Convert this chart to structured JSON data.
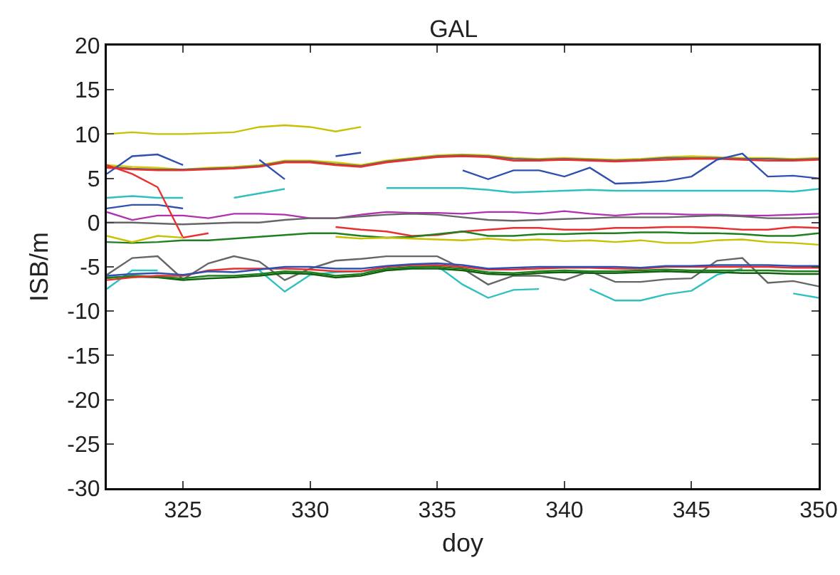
{
  "chart_data": {
    "type": "line",
    "title": "GAL",
    "xlabel": "doy",
    "ylabel": "ISB/m",
    "x": [
      322,
      323,
      324,
      325,
      326,
      327,
      328,
      329,
      330,
      331,
      332,
      333,
      334,
      335,
      336,
      337,
      338,
      339,
      340,
      341,
      342,
      343,
      344,
      345,
      346,
      347,
      348,
      349,
      350
    ],
    "xlim": [
      322,
      350
    ],
    "xticks": [
      325,
      330,
      335,
      340,
      345,
      350
    ],
    "ylim": [
      -30,
      20
    ],
    "yticks": [
      -30,
      -25,
      -20,
      -15,
      -10,
      -5,
      0,
      5,
      10,
      15,
      20
    ],
    "grid": false,
    "marker": "none",
    "line_style": "solid",
    "series": [
      {
        "color": "#c8c000",
        "values": [
          10,
          10.2,
          10,
          10,
          10.1,
          10.2,
          10.8,
          11,
          10.8,
          10.3,
          10.8,
          null,
          null,
          null,
          null,
          null,
          null,
          null,
          null,
          null,
          null,
          null,
          null,
          null,
          null,
          null,
          null,
          null,
          null
        ]
      },
      {
        "color": "#d4c800",
        "values": [
          6.5,
          6.3,
          6.2,
          6,
          6.2,
          6.3,
          6.5,
          7,
          7,
          6.8,
          6.5,
          7,
          7.3,
          7.6,
          7.7,
          7.6,
          7.3,
          7.2,
          7.3,
          7.2,
          7.1,
          7.2,
          7.4,
          7.5,
          7.4,
          7.3,
          7.3,
          7.2,
          7.3
        ]
      },
      {
        "color": "#666666",
        "values": [
          6.3,
          6.1,
          6,
          6,
          6.1,
          6.2,
          6.4,
          6.9,
          6.9,
          6.6,
          6.4,
          6.9,
          7.2,
          7.5,
          7.6,
          7.5,
          7.2,
          7.1,
          7.2,
          7.1,
          7,
          7.1,
          7.3,
          7.3,
          7.3,
          7.2,
          7.2,
          7.1,
          7.2
        ]
      },
      {
        "color": "#e83030",
        "values": [
          6.2,
          6,
          5.9,
          5.9,
          6,
          6.1,
          6.3,
          6.8,
          6.8,
          6.5,
          6.3,
          6.8,
          7.1,
          7.4,
          7.5,
          7.4,
          7,
          7,
          7.1,
          7,
          6.9,
          7,
          7.1,
          7.2,
          7.2,
          7.1,
          7,
          7,
          7.1
        ]
      },
      {
        "color": "#3050b0",
        "values": [
          5.5,
          7.5,
          7.7,
          6.5,
          null,
          null,
          7.1,
          4.9,
          null,
          7.5,
          7.9,
          null,
          null,
          null,
          5.9,
          4.9,
          5.9,
          5.9,
          5.2,
          6.2,
          4.4,
          4.5,
          4.7,
          5.2,
          7.1,
          7.8,
          5.2,
          5.3,
          5.0
        ]
      },
      {
        "color": "#30c0c0",
        "values": [
          2.8,
          3,
          2.8,
          2.8,
          null,
          2.8,
          3.3,
          3.8,
          null,
          null,
          null,
          3.9,
          3.9,
          3.9,
          3.9,
          3.7,
          3.4,
          3.5,
          3.6,
          3.7,
          3.6,
          3.6,
          3.6,
          3.6,
          3.6,
          3.6,
          3.6,
          3.5,
          3.8
        ]
      },
      {
        "color": "#3050b0",
        "values": [
          1.6,
          2,
          2,
          1.6,
          null,
          null,
          null,
          null,
          null,
          null,
          null,
          null,
          null,
          null,
          null,
          null,
          null,
          null,
          null,
          null,
          null,
          null,
          null,
          null,
          null,
          null,
          null,
          null,
          null
        ]
      },
      {
        "color": "#b030b0",
        "values": [
          1.2,
          0.3,
          0.8,
          0.8,
          0.5,
          1,
          1,
          0.9,
          0.5,
          0.5,
          0.9,
          1.2,
          1.1,
          1.1,
          1,
          1.2,
          1.2,
          1,
          1.3,
          1,
          0.8,
          1,
          1,
          0.9,
          0.9,
          0.8,
          0.8,
          0.9,
          1
        ]
      },
      {
        "color": "#666666",
        "values": [
          0,
          0,
          -0.1,
          -0.2,
          -0.1,
          0,
          0,
          0.3,
          0.5,
          0.5,
          0.7,
          0.9,
          1,
          0.9,
          0.6,
          0.3,
          0.2,
          0.3,
          0.4,
          0.5,
          0.6,
          0.6,
          0.6,
          0.7,
          0.8,
          0.7,
          0.5,
          0.5,
          0.6
        ]
      },
      {
        "color": "#e83030",
        "values": [
          6.5,
          5.5,
          4,
          -1.7,
          -1.2,
          null,
          null,
          null,
          null,
          null,
          null,
          null,
          null,
          null,
          null,
          null,
          null,
          null,
          null,
          null,
          null,
          null,
          null,
          null,
          null,
          null,
          null,
          null,
          null
        ]
      },
      {
        "color": "#e83030",
        "values": [
          null,
          null,
          null,
          null,
          null,
          null,
          null,
          null,
          null,
          -0.5,
          -0.8,
          -1,
          -1.5,
          -1.4,
          -1,
          -0.8,
          -0.6,
          -0.6,
          -0.8,
          -0.8,
          -0.6,
          -0.6,
          -0.5,
          -0.5,
          -0.6,
          -0.8,
          -0.8,
          -0.5,
          -0.6
        ]
      },
      {
        "color": "#208020",
        "values": [
          -2.2,
          -2.3,
          -2.2,
          -2,
          -2,
          -1.8,
          -1.6,
          -1.4,
          -1.2,
          -1.2,
          -1.5,
          -1.7,
          -1.6,
          -1.3,
          -1,
          -1.5,
          -1.5,
          -1.3,
          -1.3,
          -1.2,
          -1.2,
          -1.1,
          -1.1,
          -1.2,
          -1.2,
          -1.3,
          -1.5,
          -1.5,
          -1.2
        ]
      },
      {
        "color": "#c8c000",
        "values": [
          -1.5,
          -2.2,
          -1.5,
          -1.7,
          null,
          null,
          null,
          null,
          null,
          -1.6,
          -1.8,
          -1.7,
          -1.8,
          -1.9,
          -2,
          -1.8,
          -2,
          -1.9,
          -2.1,
          -2,
          -2.2,
          -2,
          -2.3,
          -2.3,
          -2,
          -1.9,
          -2.2,
          -2.3,
          -2.5
        ]
      },
      {
        "color": "#666666",
        "values": [
          -5.9,
          -4,
          -3.8,
          -6.4,
          -4.6,
          -3.8,
          -4.4,
          -6.5,
          -5.2,
          -4.3,
          -4.1,
          -3.8,
          -3.8,
          -3.8,
          -5.2,
          -7,
          -6,
          -6,
          -6.5,
          -5.5,
          -6.7,
          -6.7,
          -6.4,
          -6.3,
          -4.3,
          -4,
          -6.8,
          -6.6,
          -7.2
        ]
      },
      {
        "color": "#30c0c0",
        "values": [
          -7.5,
          -5.4,
          -5.4,
          null,
          null,
          null,
          -5.4,
          -7.8,
          -5.9,
          -5.6,
          -5.5,
          -5.3,
          -5.1,
          -4.9,
          -7,
          -8.5,
          -7.6,
          -7.5,
          null,
          -7.5,
          -8.8,
          -8.8,
          -8.1,
          -7.7,
          -5.9,
          -5.2,
          null,
          -8,
          -8.5
        ]
      },
      {
        "color": "#106010",
        "values": [
          -6.2,
          -6.1,
          -6.2,
          -6.5,
          -6.3,
          -6.2,
          -6,
          -5.7,
          -5.8,
          -6.2,
          -6,
          -5.4,
          -5.2,
          -5.2,
          -5.4,
          -5.8,
          -5.9,
          -5.7,
          -5.6,
          -5.7,
          -5.7,
          -5.6,
          -5.5,
          -5.6,
          -5.6,
          -5.7,
          -5.7,
          -5.8,
          -5.8
        ]
      },
      {
        "color": "#208020",
        "values": [
          -6.3,
          -6,
          -6.1,
          -6.3,
          -6,
          -6,
          -5.8,
          -5.5,
          -5.6,
          -6,
          -5.8,
          -5.2,
          -5,
          -5,
          -5.2,
          -5.6,
          -5.7,
          -5.5,
          -5.4,
          -5.5,
          -5.5,
          -5.4,
          -5.3,
          -5.4,
          -5.4,
          -5.4,
          -5.4,
          -5.5,
          -5.5
        ]
      },
      {
        "color": "#e83030",
        "values": [
          -6.5,
          -6.2,
          -6,
          -6,
          -5.4,
          -5.2,
          -5.2,
          -5.2,
          -5.3,
          -5.5,
          -5.5,
          -5,
          -4.8,
          -4.8,
          -5,
          -5.3,
          -5.3,
          -5.2,
          -5.1,
          -5.1,
          -5.2,
          -5.2,
          -5,
          -5,
          -5,
          -5,
          -5,
          -5.1,
          -5.1
        ]
      },
      {
        "color": "#3050b0",
        "values": [
          -6,
          -5.8,
          -5.7,
          -5.9,
          -5.5,
          -5.6,
          -5.3,
          -5,
          -5,
          -5.2,
          -5.2,
          -4.9,
          -4.7,
          -4.6,
          -4.8,
          -5.2,
          -5.1,
          -5,
          -5,
          -5,
          -5,
          -5.1,
          -4.9,
          -4.9,
          -4.8,
          -4.8,
          -4.8,
          -4.9,
          -4.9
        ]
      }
    ]
  }
}
